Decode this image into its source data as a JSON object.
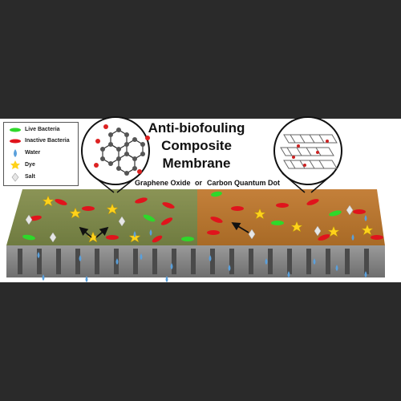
{
  "title": {
    "line1": "Anti-biofouling",
    "line2": "Composite",
    "line3": "Membrane"
  },
  "captions": {
    "left": "Graphene Oxide",
    "middle": "or",
    "right": "Carbon Quantum Dot"
  },
  "legend": {
    "items": [
      {
        "label": "Live Bacteria",
        "symbol": "green-ellipse"
      },
      {
        "label": "Inactive Bacteria",
        "symbol": "red-ellipse"
      },
      {
        "label": "Water",
        "symbol": "water-drop"
      },
      {
        "label": "Dye",
        "symbol": "yellow-star"
      },
      {
        "label": "Salt",
        "symbol": "white-diamond"
      }
    ]
  },
  "colors": {
    "graphene_oxide_surface": "#7e8a4a",
    "carbon_quantum_dot_surface": "#b7752e",
    "support_layer": "#8c8c8c",
    "live_bacteria": "#2ed82a",
    "inactive_bacteria": "#e0141c",
    "dye": "#ffd21a",
    "water": "#5aa0dc",
    "salt": "#e6e6e6",
    "background": "#2a2a2a"
  }
}
